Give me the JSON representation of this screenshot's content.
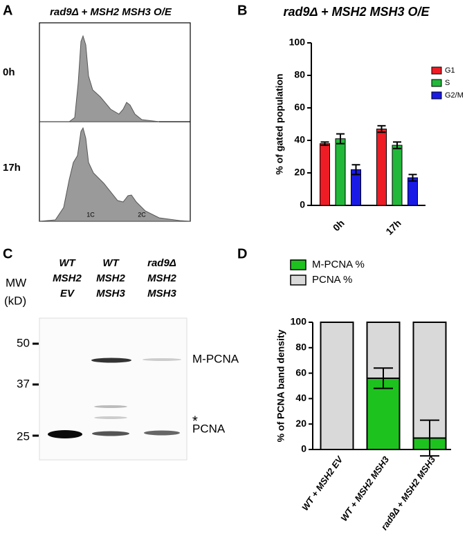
{
  "panel_labels": [
    "A",
    "B",
    "C",
    "D"
  ],
  "flow": {
    "title": "rad9Δ + MSH2 MSH3 O/E",
    "rows": [
      "0h",
      "17h"
    ],
    "x_labels": [
      "1C",
      "2C"
    ]
  },
  "blot": {
    "lanes": [
      [
        "WT",
        "MSH2",
        "EV"
      ],
      [
        "WT",
        "MSH2",
        "MSH3"
      ],
      [
        "rad9Δ",
        "MSH2",
        "MSH3"
      ]
    ],
    "mw_label": [
      "MW",
      "(kD)"
    ],
    "markers": [
      50,
      37,
      25
    ],
    "bands": [
      "M-PCNA",
      "*",
      "PCNA"
    ]
  },
  "chart_data": [
    {
      "type": "bar",
      "title": "rad9Δ + MSH2 MSH3 O/E",
      "y_label": "% of gated population",
      "categories": [
        "0h",
        "17h"
      ],
      "series": [
        {
          "name": "G1",
          "color": "#ee1c25",
          "values": [
            38,
            47
          ],
          "errors": [
            1,
            2
          ]
        },
        {
          "name": "S",
          "color": "#22b83a",
          "values": [
            41,
            37
          ],
          "errors": [
            3,
            2
          ]
        },
        {
          "name": "G2/M",
          "color": "#1a1ae6",
          "values": [
            22,
            17
          ],
          "errors": [
            3,
            2
          ]
        }
      ],
      "ylim": [
        0,
        100
      ],
      "yticks": [
        0,
        20,
        40,
        60,
        80,
        100
      ],
      "legend": "right"
    },
    {
      "type": "stacked_bar",
      "y_label": "% of PCNA band density",
      "categories": [
        "WT + MSH2 EV",
        "WT + MSH2 MSH3",
        "rad9Δ + MSH2 MSH3"
      ],
      "series": [
        {
          "name": "M-PCNA %",
          "color": "#1ec21e",
          "values": [
            0,
            56,
            9
          ],
          "errors": [
            null,
            8,
            14
          ]
        },
        {
          "name": "PCNA %",
          "color": "#d9d9d9",
          "values": [
            100,
            44,
            91
          ]
        }
      ],
      "ylim": [
        0,
        100
      ],
      "yticks": [
        0,
        20,
        40,
        60,
        80,
        100
      ],
      "legend": "top"
    }
  ]
}
